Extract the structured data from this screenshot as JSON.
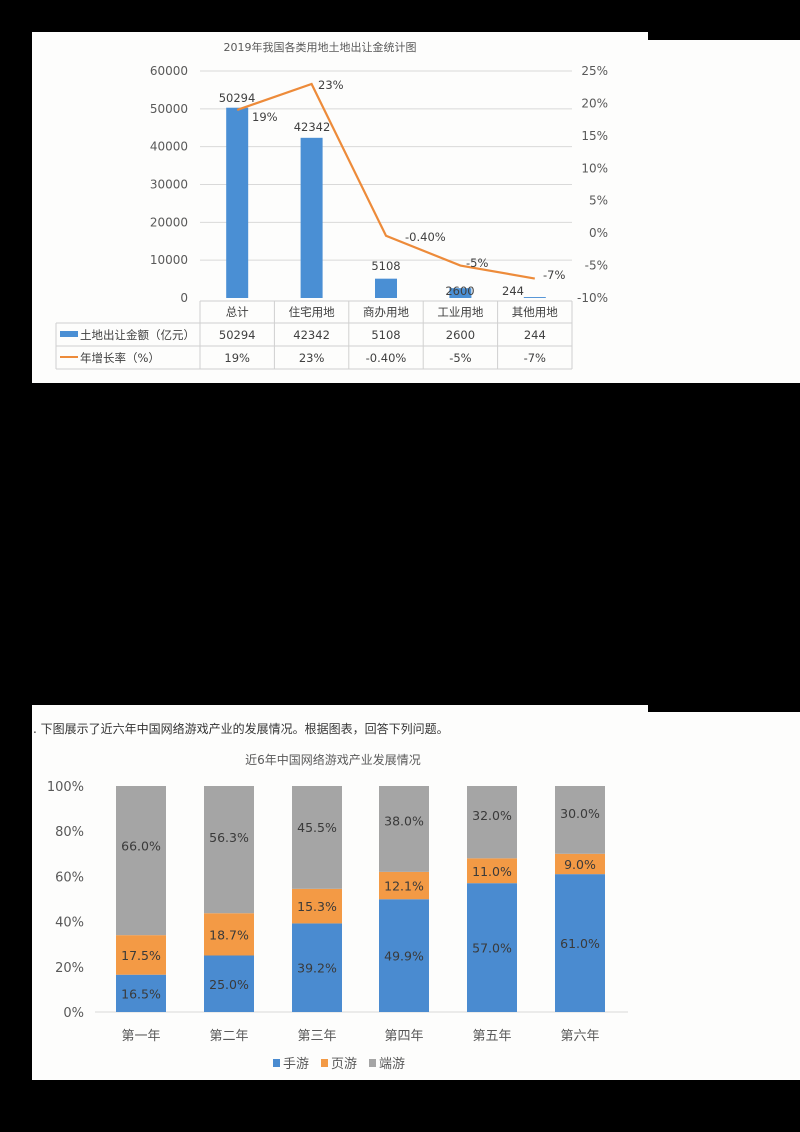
{
  "chart_data": [
    {
      "type": "bar+line",
      "title": "2019年我国各类用地土地出让金统计图",
      "categories": [
        "总计",
        "住宅用地",
        "商办用地",
        "工业用地",
        "其他用地"
      ],
      "series": [
        {
          "name": "土地出让金额（亿元）",
          "type": "bar",
          "axis": "left",
          "color": "#4a8fd4",
          "values": [
            50294,
            42342,
            5108,
            2600,
            244
          ],
          "labels": [
            "50294",
            "42342",
            "5108",
            "2600",
            "244"
          ]
        },
        {
          "name": "年增长率（%）",
          "type": "line",
          "axis": "right",
          "color": "#ed8b3a",
          "values": [
            19,
            23,
            -0.4,
            -5,
            -7
          ],
          "labels": [
            "19%",
            "23%",
            "-0.40%",
            "-5%",
            "-7%"
          ]
        }
      ],
      "y_left": {
        "ticks": [
          "60000",
          "50000",
          "40000",
          "30000",
          "20000",
          "10000",
          "0"
        ],
        "ylim": [
          0,
          60000
        ]
      },
      "y_right": {
        "ticks": [
          "25%",
          "20%",
          "15%",
          "10%",
          "5%",
          "0%",
          "-5%",
          "-10%"
        ],
        "ylim": [
          -10,
          25
        ]
      },
      "grid": true,
      "legend_position": "data-table",
      "table": {
        "rows": [
          {
            "label": "土地出让金额（亿元）",
            "values": [
              "50294",
              "42342",
              "5108",
              "2600",
              "244"
            ]
          },
          {
            "label": "年增长率（%）",
            "values": [
              "19%",
              "23%",
              "-0.40%",
              "-5%",
              "-7%"
            ]
          }
        ]
      }
    },
    {
      "type": "bar",
      "stacked": true,
      "percent": true,
      "question": ". 下图展示了近六年中国网络游戏产业的发展情况。根据图表，回答下列问题。",
      "title": "近6年中国网络游戏产业发展情况",
      "categories": [
        "第一年",
        "第二年",
        "第三年",
        "第四年",
        "第五年",
        "第六年"
      ],
      "series": [
        {
          "name": "手游",
          "color": "#4a8bd0",
          "values": [
            16.5,
            25.0,
            39.2,
            49.9,
            57.0,
            61.0
          ],
          "labels": [
            "16.5%",
            "25.0%",
            "39.2%",
            "49.9%",
            "57.0%",
            "61.0%"
          ]
        },
        {
          "name": "页游",
          "color": "#f39a45",
          "values": [
            17.5,
            18.7,
            15.3,
            12.1,
            11.0,
            9.0
          ],
          "labels": [
            "17.5%",
            "18.7%",
            "15.3%",
            "12.1%",
            "11.0%",
            "9.0%"
          ]
        },
        {
          "name": "端游",
          "color": "#a5a5a5",
          "values": [
            66.0,
            56.3,
            45.5,
            38.0,
            32.0,
            30.0
          ],
          "labels": [
            "66.0%",
            "56.3%",
            "45.5%",
            "38.0%",
            "32.0%",
            "30.0%"
          ]
        }
      ],
      "y_ticks": [
        "100%",
        "80%",
        "60%",
        "40%",
        "20%",
        "0%"
      ],
      "ylim": [
        0,
        100
      ],
      "grid": false,
      "legend_position": "bottom"
    }
  ]
}
